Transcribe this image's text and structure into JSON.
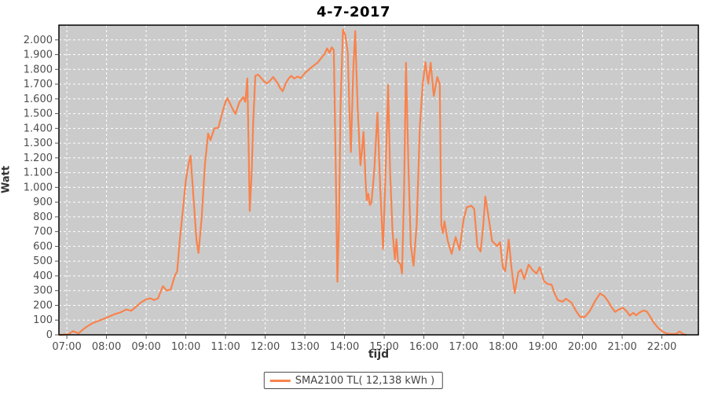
{
  "title": "4-7-2017",
  "colors": {
    "series": "#F8834C",
    "plot_bg": "#CBCBCB",
    "grid": "#FFFFFF",
    "axis_text": "#4d4d4d",
    "tick_mark": "#555555",
    "plot_border": "#000000"
  },
  "legend": {
    "label": "SMA2100 TL( 12,138 kWh )",
    "swatch_color": "#F8834C"
  },
  "chart_data": {
    "type": "line",
    "title": "4-7-2017",
    "xlabel": "tijd",
    "ylabel": "Watt",
    "grid": true,
    "legend_position": "bottom",
    "x_domain_hours": [
      6.8,
      22.92
    ],
    "ylim": [
      0,
      2100
    ],
    "x_ticks": [
      {
        "hour": 7,
        "label": "07:00"
      },
      {
        "hour": 8,
        "label": "08:00"
      },
      {
        "hour": 9,
        "label": "09:00"
      },
      {
        "hour": 10,
        "label": "10:00"
      },
      {
        "hour": 11,
        "label": "11:00"
      },
      {
        "hour": 12,
        "label": "12:00"
      },
      {
        "hour": 13,
        "label": "13:00"
      },
      {
        "hour": 14,
        "label": "14:00"
      },
      {
        "hour": 15,
        "label": "15:00"
      },
      {
        "hour": 16,
        "label": "16:00"
      },
      {
        "hour": 17,
        "label": "17:00"
      },
      {
        "hour": 18,
        "label": "18:00"
      },
      {
        "hour": 19,
        "label": "19:00"
      },
      {
        "hour": 20,
        "label": "20:00"
      },
      {
        "hour": 21,
        "label": "21:00"
      },
      {
        "hour": 22,
        "label": "22:00"
      }
    ],
    "y_ticks": [
      {
        "value": 0,
        "label": "0"
      },
      {
        "value": 100,
        "label": "100"
      },
      {
        "value": 200,
        "label": "200"
      },
      {
        "value": 300,
        "label": "300"
      },
      {
        "value": 400,
        "label": "400"
      },
      {
        "value": 500,
        "label": "500"
      },
      {
        "value": 600,
        "label": "600"
      },
      {
        "value": 700,
        "label": "700"
      },
      {
        "value": 800,
        "label": "800"
      },
      {
        "value": 900,
        "label": "900"
      },
      {
        "value": 1000,
        "label": "1.000"
      },
      {
        "value": 1100,
        "label": "1.100"
      },
      {
        "value": 1200,
        "label": "1.200"
      },
      {
        "value": 1300,
        "label": "1.300"
      },
      {
        "value": 1400,
        "label": "1.400"
      },
      {
        "value": 1500,
        "label": "1.500"
      },
      {
        "value": 1600,
        "label": "1.600"
      },
      {
        "value": 1700,
        "label": "1.700"
      },
      {
        "value": 1800,
        "label": "1.800"
      },
      {
        "value": 1900,
        "label": "1.900"
      },
      {
        "value": 2000,
        "label": "2.000"
      }
    ],
    "series": [
      {
        "name": "SMA2100 TL( 12,138 kWh )",
        "total_kwh_label": "12,138 kWh",
        "points_hour_watt": [
          [
            6.83,
            0
          ],
          [
            6.95,
            2
          ],
          [
            7.05,
            5
          ],
          [
            7.15,
            25
          ],
          [
            7.22,
            18
          ],
          [
            7.3,
            10
          ],
          [
            7.4,
            35
          ],
          [
            7.5,
            55
          ],
          [
            7.62,
            75
          ],
          [
            7.75,
            90
          ],
          [
            7.9,
            105
          ],
          [
            8.05,
            122
          ],
          [
            8.2,
            140
          ],
          [
            8.35,
            152
          ],
          [
            8.5,
            172
          ],
          [
            8.62,
            163
          ],
          [
            8.75,
            192
          ],
          [
            8.88,
            222
          ],
          [
            9.0,
            240
          ],
          [
            9.1,
            248
          ],
          [
            9.2,
            236
          ],
          [
            9.3,
            248
          ],
          [
            9.42,
            330
          ],
          [
            9.52,
            300
          ],
          [
            9.62,
            308
          ],
          [
            9.72,
            400
          ],
          [
            9.78,
            430
          ],
          [
            9.85,
            650
          ],
          [
            9.92,
            830
          ],
          [
            10.0,
            1050
          ],
          [
            10.07,
            1160
          ],
          [
            10.12,
            1215
          ],
          [
            10.2,
            900
          ],
          [
            10.27,
            640
          ],
          [
            10.32,
            555
          ],
          [
            10.4,
            800
          ],
          [
            10.48,
            1150
          ],
          [
            10.56,
            1365
          ],
          [
            10.62,
            1320
          ],
          [
            10.72,
            1400
          ],
          [
            10.82,
            1405
          ],
          [
            10.92,
            1508
          ],
          [
            11.0,
            1580
          ],
          [
            11.05,
            1605
          ],
          [
            11.13,
            1560
          ],
          [
            11.2,
            1520
          ],
          [
            11.25,
            1499
          ],
          [
            11.35,
            1578
          ],
          [
            11.45,
            1612
          ],
          [
            11.5,
            1580
          ],
          [
            11.55,
            1738
          ],
          [
            11.58,
            1300
          ],
          [
            11.61,
            840
          ],
          [
            11.66,
            1100
          ],
          [
            11.7,
            1450
          ],
          [
            11.75,
            1756
          ],
          [
            11.82,
            1765
          ],
          [
            11.9,
            1742
          ],
          [
            11.97,
            1718
          ],
          [
            12.04,
            1705
          ],
          [
            12.12,
            1722
          ],
          [
            12.2,
            1748
          ],
          [
            12.3,
            1712
          ],
          [
            12.38,
            1672
          ],
          [
            12.44,
            1652
          ],
          [
            12.52,
            1705
          ],
          [
            12.6,
            1742
          ],
          [
            12.66,
            1756
          ],
          [
            12.73,
            1738
          ],
          [
            12.82,
            1752
          ],
          [
            12.9,
            1740
          ],
          [
            13.0,
            1775
          ],
          [
            13.1,
            1798
          ],
          [
            13.2,
            1822
          ],
          [
            13.32,
            1845
          ],
          [
            13.42,
            1880
          ],
          [
            13.5,
            1905
          ],
          [
            13.56,
            1943
          ],
          [
            13.62,
            1912
          ],
          [
            13.68,
            1950
          ],
          [
            13.73,
            1930
          ],
          [
            13.78,
            1100
          ],
          [
            13.82,
            360
          ],
          [
            13.86,
            750
          ],
          [
            13.9,
            1550
          ],
          [
            13.96,
            2070
          ],
          [
            14.02,
            2030
          ],
          [
            14.08,
            1920
          ],
          [
            14.12,
            1560
          ],
          [
            14.16,
            1240
          ],
          [
            14.22,
            1800
          ],
          [
            14.27,
            2060
          ],
          [
            14.33,
            1550
          ],
          [
            14.4,
            1150
          ],
          [
            14.44,
            1250
          ],
          [
            14.48,
            1376
          ],
          [
            14.53,
            1050
          ],
          [
            14.56,
            912
          ],
          [
            14.6,
            956
          ],
          [
            14.64,
            880
          ],
          [
            14.68,
            902
          ],
          [
            14.75,
            1110
          ],
          [
            14.83,
            1508
          ],
          [
            14.9,
            1000
          ],
          [
            14.97,
            583
          ],
          [
            15.03,
            1060
          ],
          [
            15.1,
            1694
          ],
          [
            15.15,
            1100
          ],
          [
            15.21,
            700
          ],
          [
            15.27,
            512
          ],
          [
            15.31,
            648
          ],
          [
            15.35,
            496
          ],
          [
            15.41,
            478
          ],
          [
            15.45,
            416
          ],
          [
            15.5,
            950
          ],
          [
            15.55,
            1845
          ],
          [
            15.61,
            1150
          ],
          [
            15.67,
            609
          ],
          [
            15.74,
            469
          ],
          [
            15.82,
            750
          ],
          [
            15.9,
            1419
          ],
          [
            15.97,
            1700
          ],
          [
            16.04,
            1849
          ],
          [
            16.11,
            1703
          ],
          [
            16.17,
            1845
          ],
          [
            16.25,
            1620
          ],
          [
            16.34,
            1748
          ],
          [
            16.4,
            1700
          ],
          [
            16.44,
            743
          ],
          [
            16.48,
            690
          ],
          [
            16.52,
            770
          ],
          [
            16.6,
            640
          ],
          [
            16.7,
            549
          ],
          [
            16.8,
            663
          ],
          [
            16.9,
            576
          ],
          [
            17.0,
            780
          ],
          [
            17.08,
            865
          ],
          [
            17.2,
            875
          ],
          [
            17.27,
            852
          ],
          [
            17.35,
            602
          ],
          [
            17.43,
            565
          ],
          [
            17.5,
            750
          ],
          [
            17.55,
            938
          ],
          [
            17.63,
            800
          ],
          [
            17.72,
            636
          ],
          [
            17.85,
            602
          ],
          [
            17.92,
            629
          ],
          [
            17.99,
            459
          ],
          [
            18.05,
            432
          ],
          [
            18.14,
            645
          ],
          [
            18.21,
            450
          ],
          [
            18.29,
            283
          ],
          [
            18.38,
            423
          ],
          [
            18.45,
            442
          ],
          [
            18.53,
            379
          ],
          [
            18.64,
            476
          ],
          [
            18.74,
            440
          ],
          [
            18.84,
            416
          ],
          [
            18.92,
            459
          ],
          [
            19.03,
            363
          ],
          [
            19.12,
            345
          ],
          [
            19.22,
            340
          ],
          [
            19.29,
            283
          ],
          [
            19.38,
            235
          ],
          [
            19.5,
            225
          ],
          [
            19.58,
            245
          ],
          [
            19.72,
            219
          ],
          [
            19.84,
            160
          ],
          [
            19.94,
            122
          ],
          [
            20.05,
            120
          ],
          [
            20.18,
            160
          ],
          [
            20.32,
            230
          ],
          [
            20.44,
            281
          ],
          [
            20.55,
            262
          ],
          [
            20.64,
            229
          ],
          [
            20.74,
            185
          ],
          [
            20.82,
            156
          ],
          [
            20.92,
            172
          ],
          [
            21.02,
            183
          ],
          [
            21.12,
            158
          ],
          [
            21.19,
            130
          ],
          [
            21.28,
            149
          ],
          [
            21.35,
            132
          ],
          [
            21.44,
            152
          ],
          [
            21.54,
            165
          ],
          [
            21.62,
            158
          ],
          [
            21.72,
            118
          ],
          [
            21.79,
            85
          ],
          [
            21.92,
            43
          ],
          [
            22.04,
            18
          ],
          [
            22.14,
            8
          ],
          [
            22.28,
            5
          ],
          [
            22.38,
            8
          ],
          [
            22.44,
            23
          ],
          [
            22.52,
            8
          ],
          [
            22.6,
            0
          ]
        ]
      }
    ]
  }
}
